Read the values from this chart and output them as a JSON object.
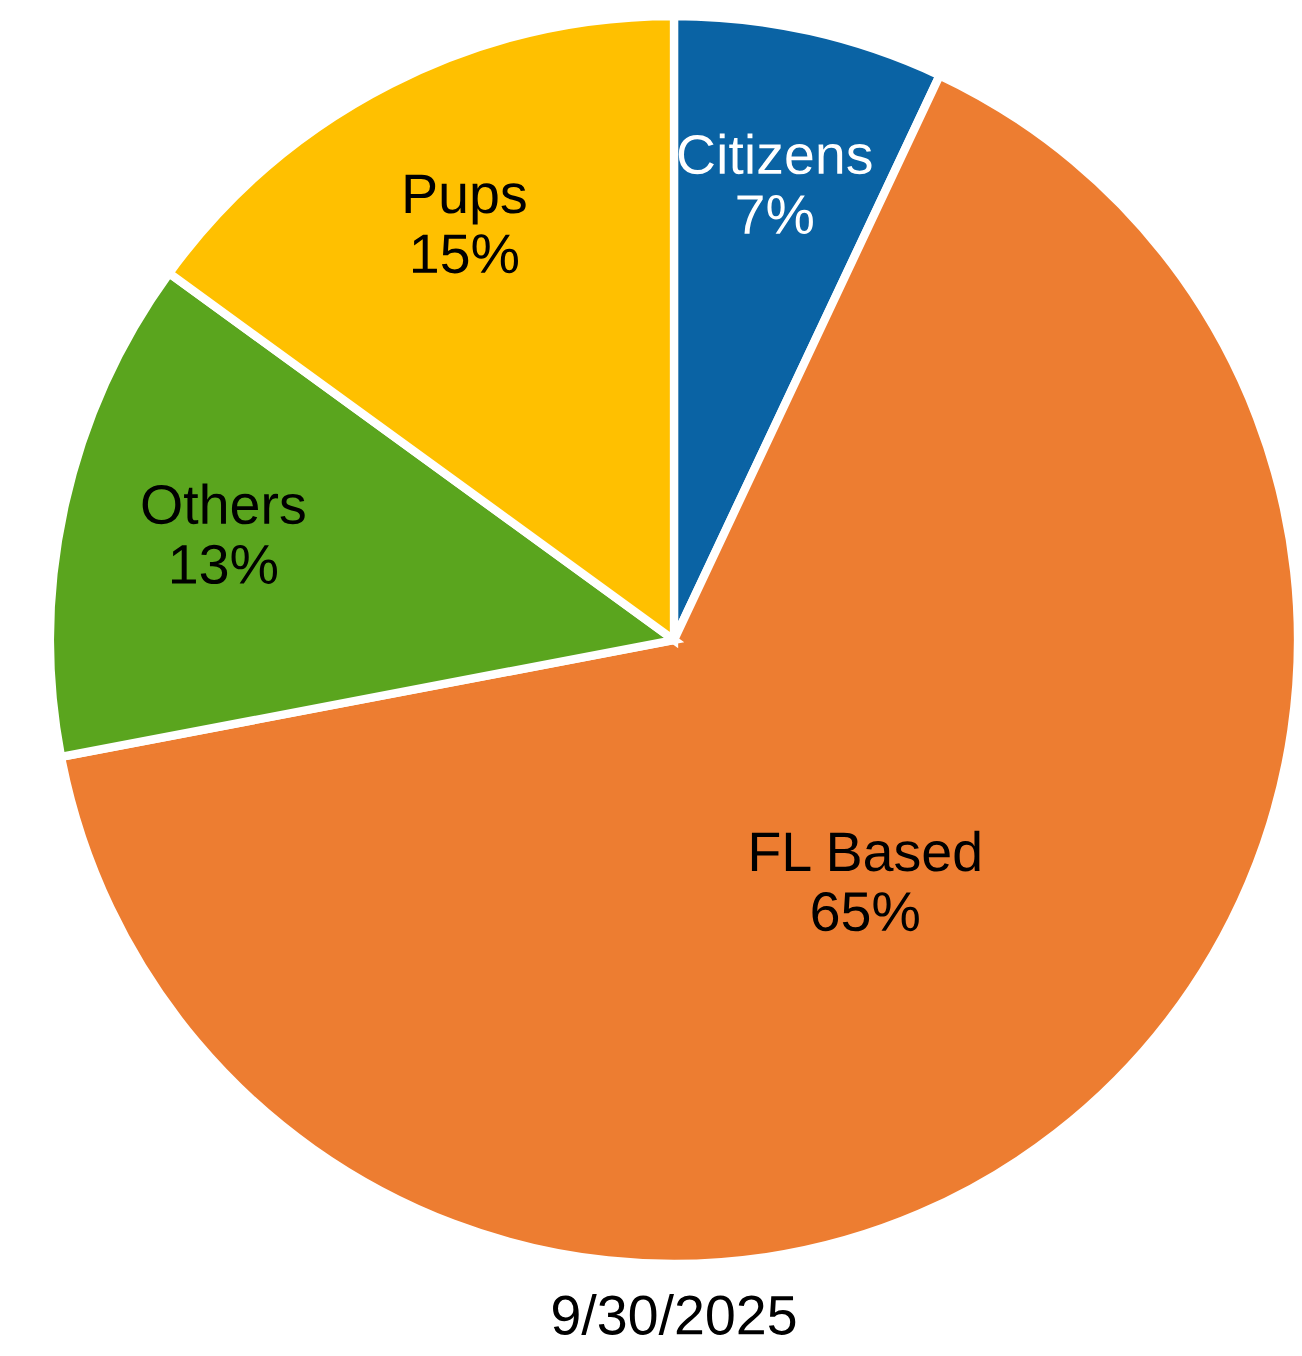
{
  "chart_data": {
    "type": "pie",
    "categories": [
      "Citizens",
      "FL Based",
      "Others",
      "Pups"
    ],
    "values": [
      7,
      65,
      13,
      15
    ],
    "colors": [
      "#0a63a4",
      "#ed7d31",
      "#5aa51e",
      "#ffc000"
    ],
    "value_labels": [
      "7%",
      "65%",
      "13%",
      "15%"
    ],
    "legend": false,
    "annotations": [
      "9/30/2025"
    ]
  }
}
